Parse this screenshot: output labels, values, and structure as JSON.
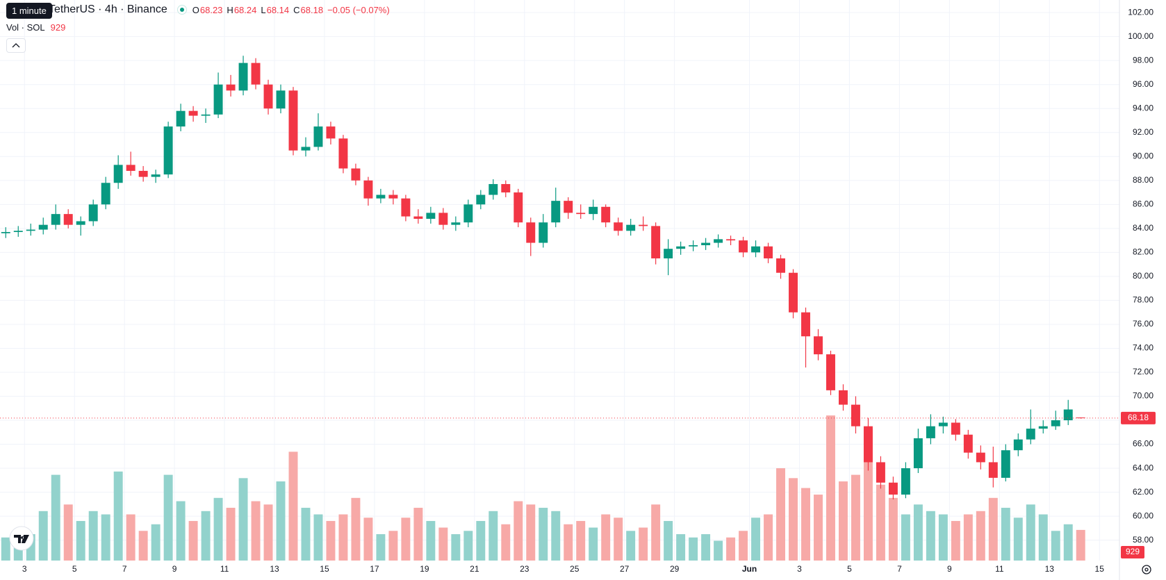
{
  "header": {
    "tooltip": "1 minute",
    "symbol": "TetherUS · 4h · Binance",
    "ohlc_labels": [
      "O",
      "H",
      "L",
      "C"
    ],
    "change": "−0.05 (−0.07%)",
    "volume_label": "Vol · SOL"
  },
  "chart_data": {
    "type": "candlestick",
    "x": [
      1.25,
      1.75,
      2.25,
      2.75,
      3.25,
      3.75,
      4.25,
      4.75,
      5.25,
      5.75,
      6.25,
      6.75,
      7.25,
      7.75,
      8.25,
      8.75,
      9.25,
      9.75,
      10.25,
      10.75,
      11.25,
      11.75,
      12.25,
      12.75,
      13.25,
      13.75,
      14.25,
      14.75,
      15.25,
      15.75,
      16.25,
      16.75,
      17.25,
      17.75,
      18.25,
      18.75,
      19.25,
      19.75,
      20.25,
      20.75,
      21.25,
      21.75,
      22.25,
      22.75,
      23.25,
      23.75,
      24.25,
      24.75,
      25.25,
      25.75,
      26.25,
      26.75,
      27.25,
      27.75,
      28.25,
      28.75,
      29.25,
      29.75,
      30.25,
      30.75,
      31.25,
      31.75,
      32.25,
      32.75,
      33.25,
      33.75,
      34.25,
      34.75,
      35.25,
      35.75,
      36.25,
      36.75,
      37.25,
      37.75,
      38.25,
      38.75,
      39.25,
      39.75,
      40.25,
      40.75,
      41.25,
      41.75,
      42.25,
      42.75,
      43.25,
      43.75,
      44.25
    ],
    "open": [
      83.6,
      83.7,
      83.8,
      83.9,
      84.3,
      85.2,
      84.3,
      84.6,
      86.0,
      87.8,
      89.3,
      88.8,
      88.3,
      88.5,
      92.5,
      93.8,
      93.4,
      93.5,
      96.0,
      95.5,
      97.8,
      96.0,
      94.0,
      95.5,
      90.5,
      90.8,
      92.5,
      91.5,
      89.0,
      88.0,
      86.5,
      86.8,
      86.5,
      85.0,
      84.8,
      85.3,
      84.3,
      84.5,
      86.0,
      86.8,
      87.7,
      87.0,
      84.5,
      82.8,
      84.5,
      86.3,
      85.3,
      85.2,
      85.8,
      84.5,
      83.8,
      84.3,
      84.2,
      81.5,
      82.3,
      82.5,
      82.6,
      82.8,
      83.1,
      83.0,
      82.0,
      82.5,
      81.5,
      80.3,
      77.0,
      75.0,
      73.5,
      70.5,
      69.3,
      67.5,
      64.5,
      62.8,
      61.8,
      64.0,
      66.5,
      67.5,
      67.8,
      66.8,
      65.3,
      64.5,
      63.2,
      65.5,
      66.4,
      67.3,
      67.5,
      68.0,
      68.23
    ],
    "high": [
      84.1,
      84.2,
      84.4,
      84.9,
      86.0,
      85.6,
      85.0,
      86.4,
      88.3,
      90.1,
      90.4,
      89.2,
      88.9,
      92.9,
      94.4,
      94.2,
      94.0,
      97.0,
      96.8,
      98.4,
      98.2,
      96.4,
      96.0,
      95.8,
      91.6,
      93.6,
      92.9,
      91.8,
      89.4,
      88.3,
      87.3,
      87.2,
      86.8,
      85.6,
      85.8,
      85.7,
      85.0,
      86.4,
      87.2,
      88.1,
      88.0,
      87.3,
      84.9,
      85.2,
      87.4,
      86.6,
      86.0,
      86.4,
      86.0,
      84.9,
      84.8,
      85.0,
      84.5,
      83.1,
      82.9,
      83.0,
      83.2,
      83.5,
      83.4,
      83.3,
      83.0,
      82.8,
      81.8,
      80.6,
      77.4,
      75.6,
      73.8,
      71.0,
      70.0,
      68.2,
      65.0,
      63.3,
      64.5,
      67.3,
      68.5,
      68.3,
      68.1,
      67.2,
      65.9,
      65.8,
      66.0,
      66.9,
      68.9,
      68.0,
      68.8,
      69.7,
      68.24
    ],
    "low": [
      83.2,
      83.3,
      83.4,
      83.5,
      83.9,
      84.0,
      83.4,
      84.2,
      85.6,
      87.3,
      88.4,
      87.9,
      87.8,
      88.2,
      92.1,
      92.9,
      92.8,
      93.2,
      95.0,
      95.1,
      95.6,
      93.5,
      93.6,
      90.1,
      90.0,
      90.5,
      91.0,
      88.6,
      87.6,
      85.9,
      86.1,
      86.0,
      84.6,
      84.4,
      84.4,
      83.9,
      83.8,
      84.1,
      85.6,
      86.4,
      86.6,
      84.1,
      81.7,
      82.4,
      84.1,
      84.8,
      84.8,
      84.7,
      84.1,
      83.4,
      83.4,
      83.8,
      81.0,
      80.1,
      81.8,
      82.1,
      82.2,
      82.4,
      82.6,
      81.6,
      81.6,
      81.1,
      79.8,
      76.5,
      72.4,
      73.0,
      70.1,
      68.8,
      66.9,
      63.8,
      62.3,
      61.4,
      61.5,
      63.6,
      66.0,
      66.9,
      66.3,
      64.8,
      63.9,
      62.4,
      62.9,
      65.0,
      66.0,
      66.9,
      67.2,
      67.6,
      68.14
    ],
    "close": [
      83.7,
      83.8,
      83.9,
      84.3,
      85.2,
      84.3,
      84.6,
      86.0,
      87.8,
      89.3,
      88.8,
      88.3,
      88.5,
      92.5,
      93.8,
      93.4,
      93.5,
      96.0,
      95.5,
      97.8,
      96.0,
      94.0,
      95.5,
      90.5,
      90.8,
      92.5,
      91.5,
      89.0,
      88.0,
      86.5,
      86.8,
      86.5,
      85.0,
      84.8,
      85.3,
      84.3,
      84.5,
      86.0,
      86.8,
      87.7,
      87.0,
      84.5,
      82.8,
      84.5,
      86.3,
      85.3,
      85.2,
      85.8,
      84.5,
      83.8,
      84.3,
      84.2,
      81.5,
      82.3,
      82.5,
      82.6,
      82.8,
      83.1,
      83.0,
      82.0,
      82.5,
      81.5,
      80.3,
      77.0,
      75.0,
      73.5,
      70.5,
      69.3,
      67.5,
      64.5,
      62.8,
      61.8,
      64.0,
      66.5,
      67.5,
      67.8,
      66.8,
      65.3,
      64.5,
      63.2,
      65.5,
      66.4,
      67.3,
      67.5,
      68.0,
      68.9,
      68.18
    ],
    "volume": [
      700,
      900,
      800,
      1500,
      2600,
      1700,
      1200,
      1500,
      1400,
      2700,
      1400,
      900,
      1100,
      2600,
      1800,
      1200,
      1500,
      1900,
      1600,
      2500,
      1800,
      1700,
      2400,
      3300,
      1600,
      1400,
      1200,
      1400,
      1900,
      1300,
      800,
      900,
      1300,
      1600,
      1200,
      1000,
      800,
      900,
      1200,
      1500,
      1100,
      1800,
      1700,
      1600,
      1500,
      1100,
      1200,
      1000,
      1400,
      1300,
      900,
      1000,
      1700,
      1200,
      800,
      700,
      800,
      600,
      700,
      900,
      1300,
      1400,
      2800,
      2500,
      2200,
      2000,
      4400,
      2400,
      2600,
      4000,
      2300,
      1900,
      1400,
      1700,
      1500,
      1400,
      1200,
      1400,
      1500,
      1900,
      1600,
      1300,
      1700,
      1400,
      900,
      1100,
      929
    ],
    "up_color": "#089981",
    "down_color": "#f23645",
    "up_volume_color": "#92d2cc",
    "down_volume_color": "#f7a9a7",
    "xlim": [
      1.02,
      45.8
    ],
    "ylim": [
      56.3,
      103.05
    ],
    "volume_lim": [
      0,
      17000
    ],
    "grid": true,
    "xticks": [
      {
        "value": 2,
        "label": "3"
      },
      {
        "value": 4,
        "label": "5"
      },
      {
        "value": 6,
        "label": "7"
      },
      {
        "value": 8,
        "label": "9"
      },
      {
        "value": 10,
        "label": "11"
      },
      {
        "value": 12,
        "label": "13"
      },
      {
        "value": 14,
        "label": "15"
      },
      {
        "value": 16,
        "label": "17"
      },
      {
        "value": 18,
        "label": "19"
      },
      {
        "value": 20,
        "label": "21"
      },
      {
        "value": 22,
        "label": "23"
      },
      {
        "value": 24,
        "label": "25"
      },
      {
        "value": 26,
        "label": "27"
      },
      {
        "value": 28,
        "label": "29"
      },
      {
        "value": 31,
        "label": "Jun"
      },
      {
        "value": 33,
        "label": "3"
      },
      {
        "value": 35,
        "label": "5"
      },
      {
        "value": 37,
        "label": "7"
      },
      {
        "value": 39,
        "label": "9"
      },
      {
        "value": 41,
        "label": "11"
      },
      {
        "value": 43,
        "label": "13"
      },
      {
        "value": 45,
        "label": "15"
      }
    ],
    "yticks": [
      {
        "value": 58,
        "label": "58.00"
      },
      {
        "value": 60,
        "label": "60.00"
      },
      {
        "value": 62,
        "label": "62.00"
      },
      {
        "value": 64,
        "label": "64.00"
      },
      {
        "value": 66,
        "label": "66.00"
      },
      {
        "value": 68,
        "label": "68.00"
      },
      {
        "value": 70,
        "label": "70.00"
      },
      {
        "value": 72,
        "label": "72.00"
      },
      {
        "value": 74,
        "label": "74.00"
      },
      {
        "value": 76,
        "label": "76.00"
      },
      {
        "value": 78,
        "label": "78.00"
      },
      {
        "value": 80,
        "label": "80.00"
      },
      {
        "value": 82,
        "label": "82.00"
      },
      {
        "value": 84,
        "label": "84.00"
      },
      {
        "value": 86,
        "label": "86.00"
      },
      {
        "value": 88,
        "label": "88.00"
      },
      {
        "value": 90,
        "label": "90.00"
      },
      {
        "value": 92,
        "label": "92.00"
      },
      {
        "value": 94,
        "label": "94.00"
      },
      {
        "value": 96,
        "label": "96.00"
      },
      {
        "value": 98,
        "label": "98.00"
      },
      {
        "value": 100,
        "label": "100.00"
      },
      {
        "value": 102,
        "label": "102.00"
      }
    ]
  }
}
